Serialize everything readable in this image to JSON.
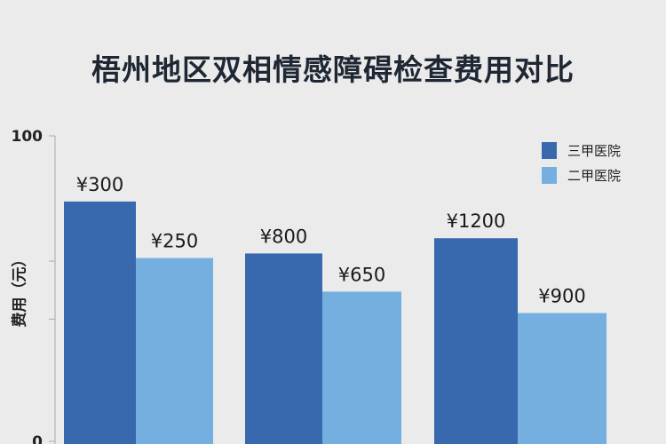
{
  "chart_data": {
    "type": "bar",
    "title": "梧州地区双相情感障碍检查费用对比",
    "xlabel": "",
    "ylabel": "费用（元）",
    "ylim": [
      0,
      100
    ],
    "yticks": [
      "0",
      "100"
    ],
    "grid": false,
    "legend_position": "top-right",
    "categories": [
      "",
      "",
      ""
    ],
    "series": [
      {
        "name": "三甲医院",
        "color": "#3868ad",
        "labels": [
          "¥300",
          "¥800",
          "¥1200"
        ],
        "values": [
          300,
          800,
          1200
        ],
        "bar_heights_axis_units": [
          78.5,
          61.5,
          66.5
        ]
      },
      {
        "name": "二甲医院",
        "color": "#74afdf",
        "labels": [
          "¥250",
          "¥650",
          "¥900"
        ],
        "values": [
          250,
          650,
          900
        ],
        "bar_heights_axis_units": [
          60,
          49,
          42
        ]
      }
    ]
  }
}
